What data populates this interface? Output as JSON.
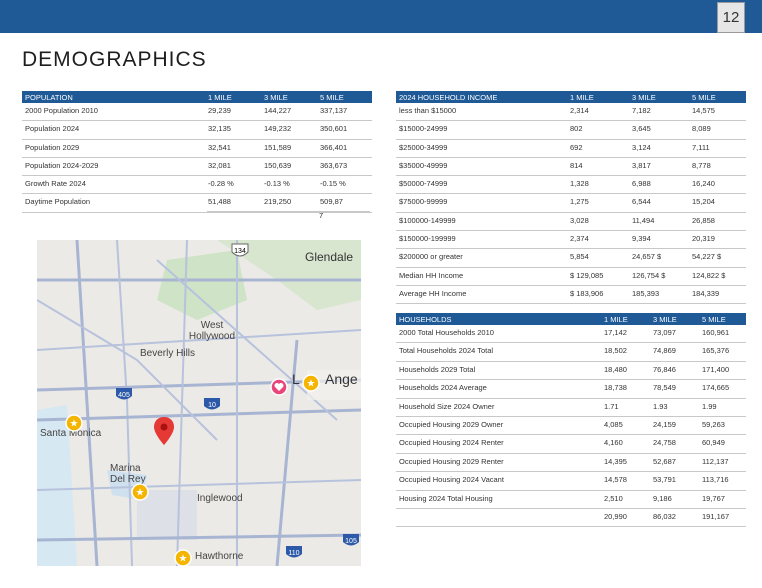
{
  "page": {
    "number": "12",
    "title": "DEMOGRAPHICS"
  },
  "population": {
    "headers": [
      "POPULATION",
      "1 MILE",
      "3 MILE",
      "5 MILE"
    ],
    "rows": [
      {
        "label": "2000 Population 2010",
        "m1": "29,239",
        "m3": "144,227",
        "m5": "337,137"
      },
      {
        "label": "Population 2024",
        "m1": "32,135",
        "m3": "149,232",
        "m5": "350,601"
      },
      {
        "label": "Population 2029",
        "m1": "32,541",
        "m3": "151,589",
        "m5": "366,401"
      },
      {
        "label": "Population 2024-2029",
        "m1": "32,081",
        "m3": "150,639",
        "m5": "363,673"
      },
      {
        "label": "Growth Rate 2024",
        "m1": "-0.28 %",
        "m3": "-0.13 %",
        "m5": "-0.15 %"
      },
      {
        "label": "Daytime Population",
        "m1": "51,488",
        "m3": "219,250",
        "m5": "509,87"
      }
    ],
    "trailing": "7"
  },
  "income": {
    "headers": [
      "2024 HOUSEHOLD INCOME",
      "1 MILE",
      "3 MILE",
      "5 MILE"
    ],
    "rows": [
      {
        "label": "less than $15000",
        "m1": "2,314",
        "m3": "7,182",
        "m5": "14,575"
      },
      {
        "label": "$15000-24999",
        "m1": "802",
        "m3": "3,645",
        "m5": "8,089"
      },
      {
        "label": "$25000-34999",
        "m1": "692",
        "m3": "3,124",
        "m5": "7,111"
      },
      {
        "label": "$35000-49999",
        "m1": "814",
        "m3": "3,817",
        "m5": "8,778"
      },
      {
        "label": "$50000-74999",
        "m1": "1,328",
        "m3": "6,988",
        "m5": "16,240"
      },
      {
        "label": "$75000-99999",
        "m1": "1,275",
        "m3": "6,544",
        "m5": "15,204"
      },
      {
        "label": "$100000-149999",
        "m1": "3,028",
        "m3": "11,494",
        "m5": "26,858"
      },
      {
        "label": "$150000-199999",
        "m1": "2,374",
        "m3": "9,394",
        "m5": "20,319"
      },
      {
        "label": "$200000 or greater",
        "m1": "5,854",
        "m3": "24,657 $",
        "m5": "54,227 $"
      },
      {
        "label": "Median HH Income",
        "m1": "$ 129,085",
        "m3": "126,754 $",
        "m5": "124,822 $"
      },
      {
        "label": "Average HH Income",
        "m1": "$ 183,906",
        "m3": "185,393",
        "m5": "184,339"
      }
    ]
  },
  "households": {
    "headers": [
      "HOUSEHOLDS",
      "1 MILE",
      "3 MILE",
      "5 MILE"
    ],
    "rows": [
      {
        "label": "2000 Total Households 2010",
        "m1": "17,142",
        "m3": "73,097",
        "m5": "160,961"
      },
      {
        "label": "Total Households 2024 Total",
        "m1": "18,502",
        "m3": "74,869",
        "m5": "165,376"
      },
      {
        "label": "Households 2029 Total",
        "m1": "18,480",
        "m3": "76,846",
        "m5": "171,400"
      },
      {
        "label": "Households 2024 Average",
        "m1": "18,738",
        "m3": "78,549",
        "m5": "174,665"
      },
      {
        "label": "Household Size 2024 Owner",
        "m1": "1.71",
        "m3": "1.93",
        "m5": "1.99"
      },
      {
        "label": "Occupied Housing 2029 Owner",
        "m1": "4,085",
        "m3": "24,159",
        "m5": "59,263"
      },
      {
        "label": "Occupied Housing 2024 Renter",
        "m1": "4,160",
        "m3": "24,758",
        "m5": "60,949"
      },
      {
        "label": "Occupied Housing 2029 Renter",
        "m1": "14,395",
        "m3": "52,687",
        "m5": "112,137"
      },
      {
        "label": "Occupied Housing 2024 Vacant",
        "m1": "14,578",
        "m3": "53,791",
        "m5": "113,716"
      },
      {
        "label": "Housing 2024 Total Housing",
        "m1": "2,510",
        "m3": "9,186",
        "m5": "19,767"
      },
      {
        "label": "",
        "m1": "20,990",
        "m3": "86,032",
        "m5": "191,167"
      }
    ]
  },
  "map": {
    "labels": [
      "Glendale",
      "West Hollywood",
      "Beverly Hills",
      "L",
      "Ange",
      "Santa Monica",
      "Marina Del Rey",
      "Inglewood",
      "Hawthorne"
    ],
    "shields": [
      "134",
      "405",
      "10",
      "110",
      "105"
    ]
  }
}
